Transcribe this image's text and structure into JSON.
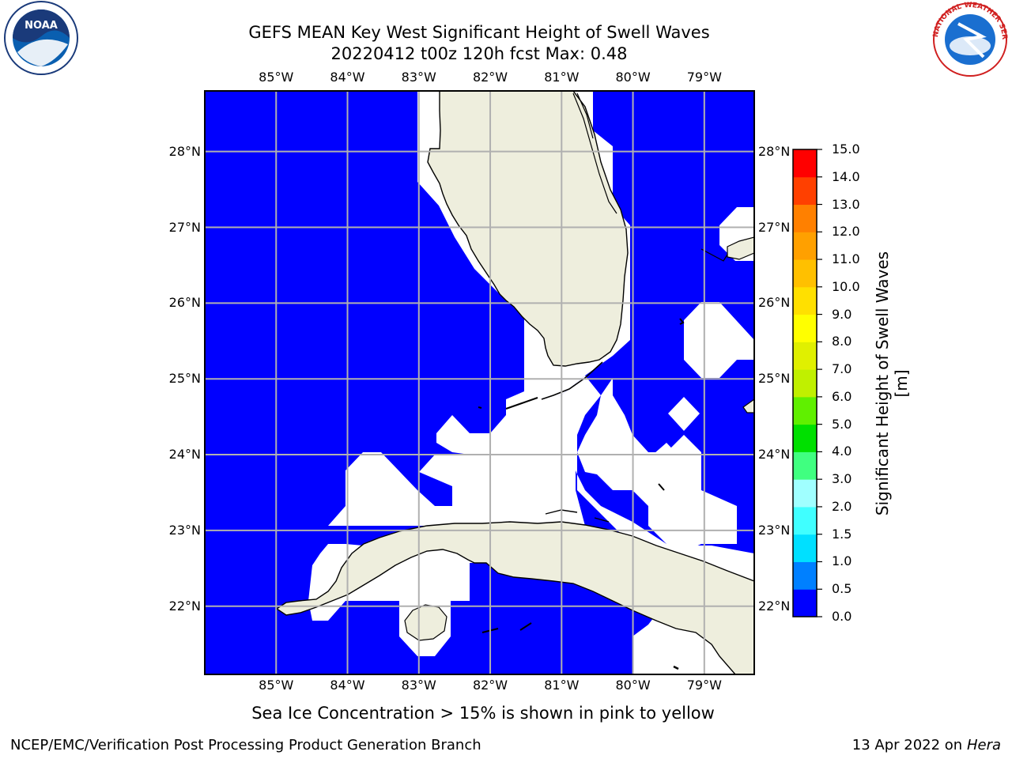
{
  "header": {
    "title_line1": "GEFS MEAN Key West Significant Height of Swell Waves",
    "title_line2": "20220412 t00z 120h fcst   Max: 0.48"
  },
  "logos": {
    "left": {
      "icon": "noaa-logo-icon",
      "text": "NOAA"
    },
    "right": {
      "icon": "nws-logo-icon",
      "text": "NATIONAL WEATHER SERVICE"
    }
  },
  "map": {
    "projection": "lat-lon",
    "lon_range": [
      -86.0,
      -78.3
    ],
    "lat_range": [
      21.1,
      28.8
    ],
    "lon_ticks": [
      "85°W",
      "84°W",
      "83°W",
      "82°W",
      "81°W",
      "80°W",
      "79°W"
    ],
    "lat_ticks": [
      "28°N",
      "27°N",
      "26°N",
      "25°N",
      "24°N",
      "23°N",
      "22°N"
    ],
    "colors": {
      "sea": "#0000ff",
      "land": "#eeeedd",
      "nodata": "#ffffff",
      "grid": "#b0b0b0"
    }
  },
  "colorbar": {
    "label": "Significant Height of Swell Waves [m]",
    "ticks": [
      "0.0",
      "0.5",
      "1.0",
      "1.5",
      "2.0",
      "3.0",
      "4.0",
      "5.0",
      "6.0",
      "7.0",
      "8.0",
      "9.0",
      "10.0",
      "11.0",
      "12.0",
      "13.0",
      "14.0",
      "15.0"
    ],
    "colors": [
      "#0000ff",
      "#0080ff",
      "#00e0ff",
      "#40ffff",
      "#a0ffff",
      "#40ff80",
      "#00e000",
      "#60f000",
      "#c0f000",
      "#e0f000",
      "#ffff00",
      "#ffe000",
      "#ffc000",
      "#ffa000",
      "#ff8000",
      "#ff4000",
      "#ff0000"
    ]
  },
  "caption": "Sea Ice Concentration > 15% is shown in pink to yellow",
  "footer": {
    "left": "NCEP/EMC/Verification Post Processing Product Generation Branch",
    "right_date": "13 Apr 2022 on ",
    "right_host": "Hera"
  }
}
